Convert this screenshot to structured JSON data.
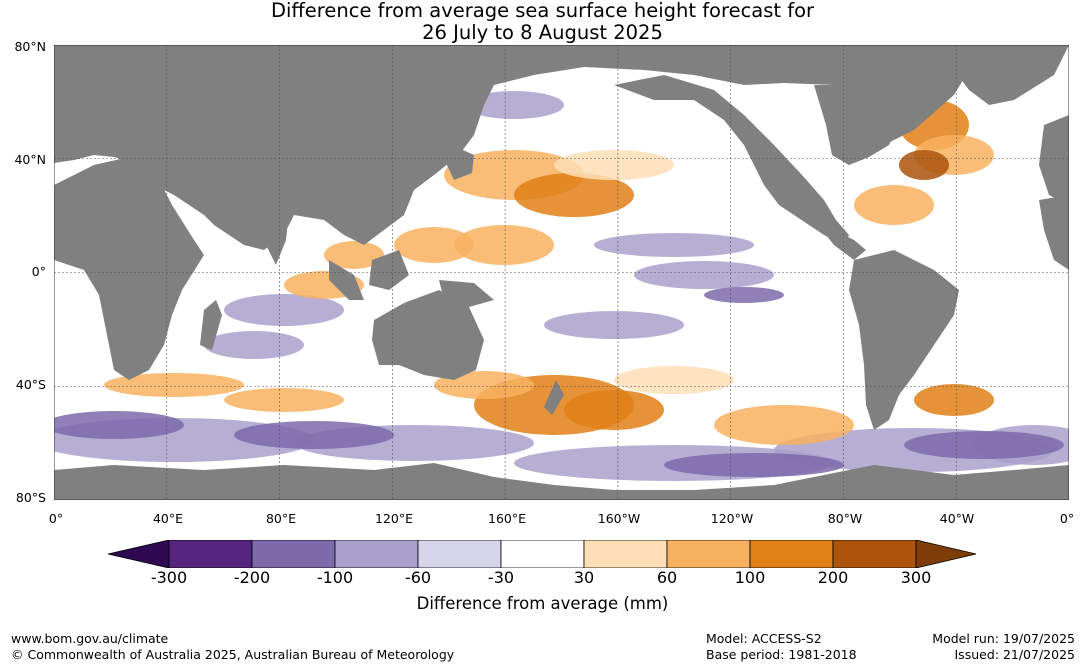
{
  "title": {
    "line1": "Difference from average sea surface height forecast for",
    "line2": "26 July to 8 August 2025"
  },
  "axes": {
    "lat_labels": [
      "80°N",
      "40°N",
      "0°",
      "40°S",
      "80°S"
    ],
    "lon_labels": [
      "0°",
      "40°E",
      "80°E",
      "120°E",
      "160°E",
      "160°W",
      "120°W",
      "80°W",
      "40°W",
      "0°"
    ]
  },
  "colorbar": {
    "label": "Difference from average (mm)",
    "ticks": [
      "-300",
      "-200",
      "-100",
      "-60",
      "-30",
      "30",
      "60",
      "100",
      "200",
      "300"
    ],
    "colors": [
      "#2f0a52",
      "#54247f",
      "#7c6aaa",
      "#a9a1cb",
      "#d6d5e9",
      "#ffffff",
      "#fddeb5",
      "#f8b160",
      "#e07f15",
      "#ac540b",
      "#7e3c07"
    ]
  },
  "map_colors": {
    "land": "#808080",
    "ocean": "#ffffff",
    "grid": "#555555"
  },
  "footer": {
    "website": "www.bom.gov.au/climate",
    "copyright": "© Commonwealth of Australia 2025, Australian Bureau of Meteorology",
    "model": "Model: ACCESS-S2",
    "base_period": "Base period: 1981-2018",
    "model_run": "Model run: 19/07/2025",
    "issued": "Issued: 21/07/2025"
  }
}
